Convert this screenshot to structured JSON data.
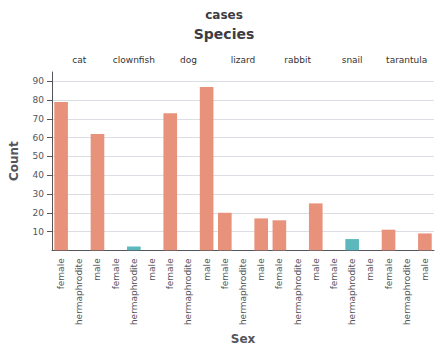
{
  "chart_data": {
    "type": "bar",
    "title": "Species",
    "subtitle": "cases",
    "x_label": "Sex",
    "y_label": "Count",
    "categories": [
      "female",
      "hermaphrodite",
      "male",
      "female",
      "hermaphrodite",
      "male",
      "female",
      "hermaphrodite",
      "male",
      "female",
      "hermaphrodite",
      "male",
      "female",
      "hermaphrodite",
      "male",
      "female",
      "hermaphrodite",
      "male",
      "female",
      "hermaphrodite",
      "male"
    ],
    "groups": [
      "cat",
      "cat",
      "cat",
      "clownfish",
      "clownfish",
      "clownfish",
      "dog",
      "dog",
      "dog",
      "lizard",
      "lizard",
      "lizard",
      "rabbit",
      "rabbit",
      "rabbit",
      "snail",
      "snail",
      "snail",
      "tarantula",
      "tarantula",
      "tarantula"
    ],
    "values": [
      79,
      0,
      62,
      0,
      2,
      0,
      73,
      0,
      87,
      20,
      0,
      17,
      16,
      0,
      25,
      0,
      6,
      0,
      11,
      0,
      9
    ],
    "colors": [
      "#e8927c",
      "#5db8be",
      "#e8927c",
      "#e8927c",
      "#5db8be",
      "#e8927c",
      "#e8927c",
      "#5db8be",
      "#e8927c",
      "#e8927c",
      "#5db8be",
      "#e8927c",
      "#e8927c",
      "#5db8be",
      "#e8927c",
      "#e8927c",
      "#5db8be",
      "#e8927c",
      "#e8927c",
      "#5db8be",
      "#e8927c"
    ],
    "ylim": [
      0,
      95
    ],
    "yticks": [
      10,
      20,
      30,
      40,
      50,
      60,
      70,
      80,
      90
    ],
    "grid": true
  }
}
